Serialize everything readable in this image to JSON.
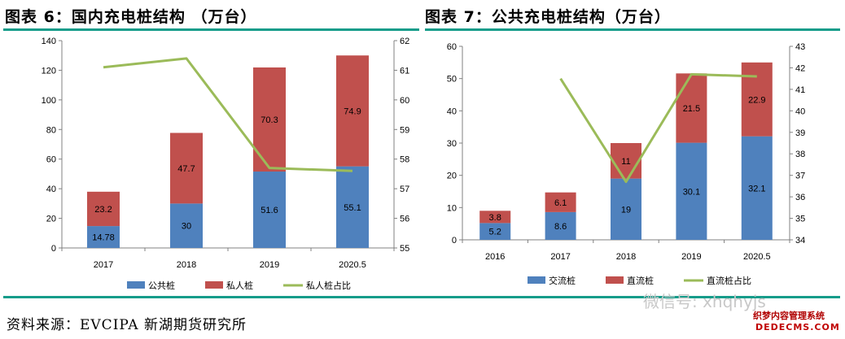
{
  "titles": {
    "left": "图表 6：国内充电桩结构 （万台）",
    "right": "图表 7：公共充电桩结构（万台）"
  },
  "source": "资料来源：EVCIPA 新湖期货研究所",
  "watermark": {
    "wechat": "微信号: xhqhyjs",
    "site_name": "织梦内容管理系统",
    "site_url": "DEDECMS.COM"
  },
  "colors": {
    "blue": "#4f81bd",
    "red": "#c0504d",
    "green": "#9bbb59",
    "rule": "#159c8a"
  },
  "chart_data": [
    {
      "type": "bar",
      "stacked": true,
      "categories": [
        "2017",
        "2018",
        "2019",
        "2020.5"
      ],
      "series": [
        {
          "name": "公共桩",
          "color": "#4f81bd",
          "values": [
            14.78,
            30,
            51.6,
            55.1
          ],
          "labels": [
            "14.78",
            "30",
            "51.6",
            "55.1"
          ]
        },
        {
          "name": "私人桩",
          "color": "#c0504d",
          "values": [
            23.2,
            47.7,
            70.3,
            74.9
          ],
          "labels": [
            "23.2",
            "47.7",
            "70.3",
            "74.9"
          ]
        }
      ],
      "line": {
        "name": "私人桩占比",
        "color": "#9bbb59",
        "axis": "right",
        "values": [
          61.1,
          61.4,
          57.7,
          57.6
        ]
      },
      "ylim": [
        0,
        140
      ],
      "yticks": [
        "0",
        "20",
        "40",
        "60",
        "80",
        "100",
        "120",
        "140"
      ],
      "y2lim": [
        55,
        62
      ],
      "y2ticks": [
        "55",
        "56",
        "57",
        "58",
        "59",
        "60",
        "61",
        "62"
      ],
      "legend": "bottom"
    },
    {
      "type": "bar",
      "stacked": true,
      "categories": [
        "2016",
        "2017",
        "2018",
        "2019",
        "2020.5"
      ],
      "series": [
        {
          "name": "交流桩",
          "color": "#4f81bd",
          "values": [
            5.2,
            8.6,
            19,
            30.1,
            32.1
          ],
          "labels": [
            "5.2",
            "8.6",
            "19",
            "30.1",
            "32.1"
          ]
        },
        {
          "name": "直流桩",
          "color": "#c0504d",
          "values": [
            3.8,
            6.1,
            11,
            21.5,
            22.9
          ],
          "labels": [
            "3.8",
            "6.1",
            "11",
            "21.5",
            "22.9"
          ]
        }
      ],
      "line": {
        "name": "直流桩占比",
        "color": "#9bbb59",
        "axis": "right",
        "values": [
          null,
          41.5,
          36.7,
          41.7,
          41.6
        ]
      },
      "ylim": [
        0,
        60
      ],
      "yticks": [
        "0",
        "10",
        "20",
        "30",
        "40",
        "50",
        "60"
      ],
      "y2lim": [
        34,
        43
      ],
      "y2ticks": [
        "34",
        "35",
        "36",
        "37",
        "38",
        "39",
        "40",
        "41",
        "42",
        "43"
      ],
      "legend": "bottom"
    }
  ]
}
